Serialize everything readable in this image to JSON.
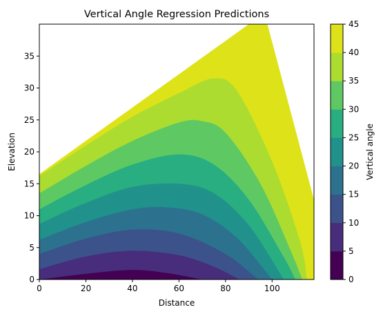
{
  "chart_data": {
    "type": "contour",
    "title": "Vertical Angle Regression Predictions",
    "xlabel": "Distance",
    "ylabel": "Elevation",
    "colorbar_label": "Vertical angle",
    "xlim": [
      0,
      118
    ],
    "ylim": [
      0,
      40
    ],
    "xticks": [
      "0",
      "20",
      "40",
      "60",
      "80",
      "100"
    ],
    "yticks": [
      "0",
      "5",
      "10",
      "15",
      "20",
      "25",
      "30",
      "35"
    ],
    "levels": [
      0,
      5,
      10,
      15,
      20,
      25,
      30,
      35,
      40,
      45
    ],
    "colorbar_ticks": [
      "0",
      "5",
      "10",
      "15",
      "20",
      "25",
      "30",
      "35",
      "40",
      "45"
    ],
    "level_colors": [
      "#440154",
      "#472d7b",
      "#3b528b",
      "#2c728e",
      "#21918c",
      "#28ae80",
      "#5ec962",
      "#addc30",
      "#dde318"
    ],
    "predicted_region": {
      "upper_left_boundary": [
        [
          0,
          16.5
        ],
        [
          90,
          40
        ]
      ],
      "lower_right_boundary": [
        [
          98,
          40
        ],
        [
          118,
          12.5
        ]
      ]
    },
    "approx_contours": [
      {
        "level": 5,
        "points": [
          [
            0,
            0
          ],
          [
            20,
            0.9
          ],
          [
            40,
            1.5
          ],
          [
            55,
            1.0
          ],
          [
            70,
            0
          ]
        ]
      },
      {
        "level": 10,
        "points": [
          [
            0,
            1.6
          ],
          [
            20,
            3.6
          ],
          [
            40,
            4.5
          ],
          [
            60,
            3.8
          ],
          [
            75,
            2.0
          ],
          [
            86,
            0
          ]
        ]
      },
      {
        "level": 15,
        "points": [
          [
            0,
            4.0
          ],
          [
            20,
            6.4
          ],
          [
            40,
            7.8
          ],
          [
            60,
            7.2
          ],
          [
            80,
            4.0
          ],
          [
            94,
            0
          ]
        ]
      },
      {
        "level": 20,
        "points": [
          [
            0,
            6.2
          ],
          [
            20,
            9.0
          ],
          [
            40,
            11.0
          ],
          [
            55,
            11.3
          ],
          [
            70,
            10.2
          ],
          [
            85,
            6.5
          ],
          [
            100,
            0
          ]
        ]
      },
      {
        "level": 25,
        "points": [
          [
            0,
            8.7
          ],
          [
            20,
            12.0
          ],
          [
            40,
            14.5
          ],
          [
            60,
            15.0
          ],
          [
            75,
            13.5
          ],
          [
            90,
            8.5
          ],
          [
            105,
            0
          ]
        ]
      },
      {
        "level": 30,
        "points": [
          [
            0,
            11.0
          ],
          [
            20,
            14.8
          ],
          [
            40,
            18.0
          ],
          [
            60,
            19.6
          ],
          [
            75,
            18.0
          ],
          [
            90,
            12.5
          ],
          [
            105,
            3.5
          ],
          [
            110,
            0
          ]
        ]
      },
      {
        "level": 35,
        "points": [
          [
            0,
            13.5
          ],
          [
            20,
            17.8
          ],
          [
            40,
            21.7
          ],
          [
            60,
            24.6
          ],
          [
            70,
            24.8
          ],
          [
            80,
            23.0
          ],
          [
            95,
            15.0
          ],
          [
            108,
            4.5
          ],
          [
            113,
            0
          ]
        ]
      },
      {
        "level": 40,
        "points": [
          [
            0,
            16.2
          ],
          [
            20,
            21.0
          ],
          [
            40,
            25.5
          ],
          [
            60,
            29.2
          ],
          [
            75,
            31.5
          ],
          [
            85,
            29.5
          ],
          [
            100,
            18.5
          ],
          [
            112,
            6.0
          ],
          [
            115,
            0
          ]
        ]
      }
    ]
  }
}
